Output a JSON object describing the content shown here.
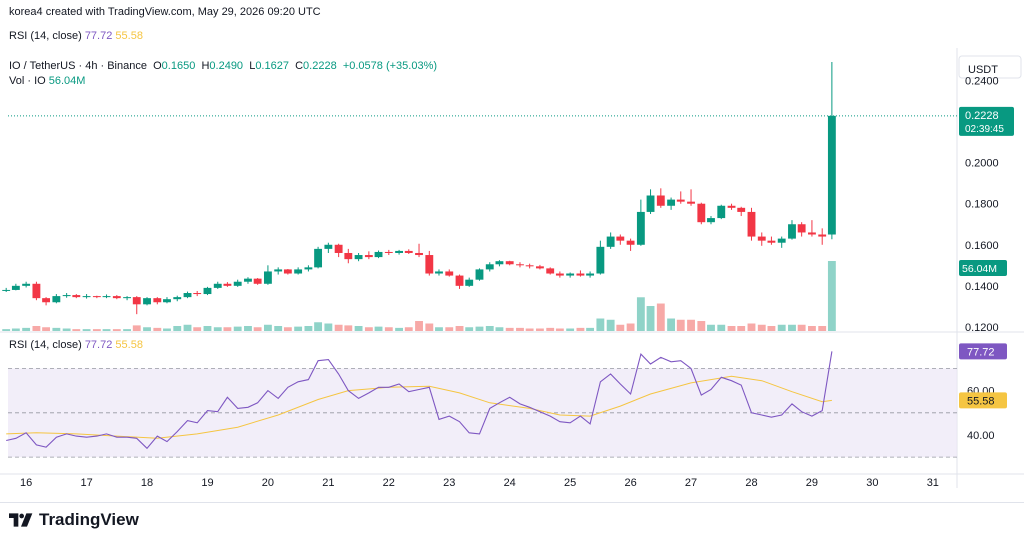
{
  "header": {
    "created_text": "korea4 created with TradingView.com, May 29, 2026 09:20 UTC"
  },
  "rsi_top": {
    "label": "RSI (14, close)",
    "rsi_value": "77.72",
    "ma_value": "55.58"
  },
  "legend": {
    "symbol": "IO / TetherUS · 4h · Binance",
    "o_label": "O",
    "o_value": "0.1650",
    "h_label": "H",
    "h_value": "0.2490",
    "l_label": "L",
    "l_value": "0.1627",
    "c_label": "C",
    "c_value": "0.2228",
    "change": "+0.0578 (+35.03%)",
    "vol_label": "Vol · IO",
    "vol_value": "56.04M"
  },
  "rsi_pane": {
    "label": "RSI (14, close)",
    "rsi_value": "77.72",
    "ma_value": "55.58"
  },
  "price_axis": {
    "currency": "USDT",
    "ticks": [
      "0.2400",
      "0.2000",
      "0.1800",
      "0.1600",
      "0.1400",
      "0.1200"
    ],
    "last_price": "0.2228",
    "countdown": "02:39:45",
    "volume_badge": "56.04M"
  },
  "rsi_axis": {
    "ticks": [
      "60.00",
      "40.00"
    ],
    "rsi_badge": "77.72",
    "ma_badge": "55.58"
  },
  "time_axis": {
    "ticks": [
      "16",
      "17",
      "18",
      "19",
      "20",
      "21",
      "22",
      "23",
      "24",
      "25",
      "26",
      "27",
      "28",
      "29",
      "30",
      "31"
    ]
  },
  "logo": {
    "text": "TradingView"
  },
  "colors": {
    "up": "#089981",
    "down": "#f23645",
    "rsi": "#7e57c2",
    "rsi_ma": "#f5c542",
    "vol_up": "#8fd3c8",
    "vol_down": "#f7a9a7",
    "rsi_band": "#ede7f6"
  },
  "chart_data": {
    "type": "candlestick",
    "symbol": "IO / TetherUS",
    "timeframe": "4h",
    "exchange": "Binance",
    "ylim": [
      0.118,
      0.25
    ],
    "rsi_ylim": [
      26,
      86
    ],
    "rsi_levels": [
      70,
      50,
      30
    ],
    "x_range_days": [
      15.7,
      31.4
    ],
    "candles": [
      {
        "t": 15.67,
        "o": 0.138,
        "h": 0.139,
        "l": 0.137,
        "c": 0.138,
        "v": 1.5
      },
      {
        "t": 15.83,
        "o": 0.138,
        "h": 0.141,
        "l": 0.1378,
        "c": 0.14,
        "v": 2.0
      },
      {
        "t": 16.0,
        "o": 0.14,
        "h": 0.142,
        "l": 0.1392,
        "c": 0.141,
        "v": 2.5
      },
      {
        "t": 16.17,
        "o": 0.141,
        "h": 0.142,
        "l": 0.133,
        "c": 0.134,
        "v": 4.0
      },
      {
        "t": 16.33,
        "o": 0.134,
        "h": 0.1345,
        "l": 0.1305,
        "c": 0.132,
        "v": 3.0
      },
      {
        "t": 16.5,
        "o": 0.132,
        "h": 0.136,
        "l": 0.1315,
        "c": 0.135,
        "v": 2.5
      },
      {
        "t": 16.67,
        "o": 0.135,
        "h": 0.1365,
        "l": 0.1342,
        "c": 0.1355,
        "v": 2.0
      },
      {
        "t": 16.83,
        "o": 0.1355,
        "h": 0.136,
        "l": 0.134,
        "c": 0.1345,
        "v": 1.5
      },
      {
        "t": 17.0,
        "o": 0.1345,
        "h": 0.136,
        "l": 0.1338,
        "c": 0.135,
        "v": 1.5
      },
      {
        "t": 17.17,
        "o": 0.135,
        "h": 0.1352,
        "l": 0.134,
        "c": 0.1345,
        "v": 1.5
      },
      {
        "t": 17.33,
        "o": 0.1345,
        "h": 0.1358,
        "l": 0.134,
        "c": 0.135,
        "v": 1.5
      },
      {
        "t": 17.5,
        "o": 0.135,
        "h": 0.1355,
        "l": 0.1335,
        "c": 0.134,
        "v": 1.5
      },
      {
        "t": 17.67,
        "o": 0.134,
        "h": 0.135,
        "l": 0.133,
        "c": 0.1345,
        "v": 1.5
      },
      {
        "t": 17.83,
        "o": 0.1345,
        "h": 0.135,
        "l": 0.1262,
        "c": 0.131,
        "v": 4.5
      },
      {
        "t": 18.0,
        "o": 0.131,
        "h": 0.1345,
        "l": 0.1305,
        "c": 0.134,
        "v": 3.0
      },
      {
        "t": 18.17,
        "o": 0.134,
        "h": 0.1345,
        "l": 0.131,
        "c": 0.132,
        "v": 2.5
      },
      {
        "t": 18.33,
        "o": 0.132,
        "h": 0.1345,
        "l": 0.1315,
        "c": 0.1335,
        "v": 2.0
      },
      {
        "t": 18.5,
        "o": 0.1335,
        "h": 0.1352,
        "l": 0.1325,
        "c": 0.1345,
        "v": 4.0
      },
      {
        "t": 18.67,
        "o": 0.1345,
        "h": 0.1372,
        "l": 0.134,
        "c": 0.1365,
        "v": 5.0
      },
      {
        "t": 18.83,
        "o": 0.1365,
        "h": 0.1375,
        "l": 0.135,
        "c": 0.136,
        "v": 3.0
      },
      {
        "t": 19.0,
        "o": 0.136,
        "h": 0.1395,
        "l": 0.1355,
        "c": 0.139,
        "v": 4.0
      },
      {
        "t": 19.17,
        "o": 0.139,
        "h": 0.142,
        "l": 0.1385,
        "c": 0.141,
        "v": 3.0
      },
      {
        "t": 19.33,
        "o": 0.141,
        "h": 0.1418,
        "l": 0.1395,
        "c": 0.14,
        "v": 3.0
      },
      {
        "t": 19.5,
        "o": 0.14,
        "h": 0.143,
        "l": 0.1395,
        "c": 0.142,
        "v": 3.5
      },
      {
        "t": 19.67,
        "o": 0.142,
        "h": 0.1442,
        "l": 0.141,
        "c": 0.1435,
        "v": 4.0
      },
      {
        "t": 19.83,
        "o": 0.1435,
        "h": 0.1438,
        "l": 0.1405,
        "c": 0.141,
        "v": 3.0
      },
      {
        "t": 20.0,
        "o": 0.141,
        "h": 0.15,
        "l": 0.1405,
        "c": 0.147,
        "v": 5.0
      },
      {
        "t": 20.17,
        "o": 0.147,
        "h": 0.149,
        "l": 0.1455,
        "c": 0.148,
        "v": 4.0
      },
      {
        "t": 20.33,
        "o": 0.148,
        "h": 0.1482,
        "l": 0.1455,
        "c": 0.146,
        "v": 3.0
      },
      {
        "t": 20.5,
        "o": 0.146,
        "h": 0.149,
        "l": 0.1455,
        "c": 0.148,
        "v": 3.5
      },
      {
        "t": 20.67,
        "o": 0.148,
        "h": 0.15,
        "l": 0.147,
        "c": 0.149,
        "v": 4.0
      },
      {
        "t": 20.83,
        "o": 0.149,
        "h": 0.159,
        "l": 0.1485,
        "c": 0.158,
        "v": 7.0
      },
      {
        "t": 21.0,
        "o": 0.158,
        "h": 0.161,
        "l": 0.156,
        "c": 0.16,
        "v": 6.0
      },
      {
        "t": 21.17,
        "o": 0.16,
        "h": 0.1605,
        "l": 0.154,
        "c": 0.156,
        "v": 5.0
      },
      {
        "t": 21.33,
        "o": 0.156,
        "h": 0.158,
        "l": 0.151,
        "c": 0.153,
        "v": 4.5
      },
      {
        "t": 21.5,
        "o": 0.153,
        "h": 0.156,
        "l": 0.152,
        "c": 0.155,
        "v": 4.0
      },
      {
        "t": 21.67,
        "o": 0.155,
        "h": 0.1568,
        "l": 0.153,
        "c": 0.154,
        "v": 3.0
      },
      {
        "t": 21.83,
        "o": 0.154,
        "h": 0.1572,
        "l": 0.1535,
        "c": 0.1565,
        "v": 3.5
      },
      {
        "t": 22.0,
        "o": 0.1565,
        "h": 0.1575,
        "l": 0.155,
        "c": 0.156,
        "v": 3.0
      },
      {
        "t": 22.17,
        "o": 0.156,
        "h": 0.1575,
        "l": 0.1552,
        "c": 0.157,
        "v": 2.5
      },
      {
        "t": 22.33,
        "o": 0.157,
        "h": 0.1578,
        "l": 0.1555,
        "c": 0.156,
        "v": 3.0
      },
      {
        "t": 22.5,
        "o": 0.156,
        "h": 0.1605,
        "l": 0.154,
        "c": 0.155,
        "v": 8.0
      },
      {
        "t": 22.67,
        "o": 0.155,
        "h": 0.157,
        "l": 0.145,
        "c": 0.146,
        "v": 6.0
      },
      {
        "t": 22.83,
        "o": 0.146,
        "h": 0.148,
        "l": 0.145,
        "c": 0.147,
        "v": 3.0
      },
      {
        "t": 23.0,
        "o": 0.147,
        "h": 0.148,
        "l": 0.1445,
        "c": 0.145,
        "v": 3.0
      },
      {
        "t": 23.17,
        "o": 0.145,
        "h": 0.1455,
        "l": 0.1385,
        "c": 0.14,
        "v": 4.0
      },
      {
        "t": 23.33,
        "o": 0.14,
        "h": 0.144,
        "l": 0.1395,
        "c": 0.143,
        "v": 3.0
      },
      {
        "t": 23.5,
        "o": 0.143,
        "h": 0.1485,
        "l": 0.1425,
        "c": 0.148,
        "v": 3.5
      },
      {
        "t": 23.67,
        "o": 0.148,
        "h": 0.1515,
        "l": 0.147,
        "c": 0.1505,
        "v": 4.0
      },
      {
        "t": 23.83,
        "o": 0.1505,
        "h": 0.1525,
        "l": 0.1495,
        "c": 0.152,
        "v": 3.0
      },
      {
        "t": 24.0,
        "o": 0.152,
        "h": 0.1522,
        "l": 0.15,
        "c": 0.1505,
        "v": 2.5
      },
      {
        "t": 24.17,
        "o": 0.1505,
        "h": 0.1515,
        "l": 0.149,
        "c": 0.15,
        "v": 2.5
      },
      {
        "t": 24.33,
        "o": 0.15,
        "h": 0.1508,
        "l": 0.1485,
        "c": 0.1495,
        "v": 2.0
      },
      {
        "t": 24.5,
        "o": 0.1495,
        "h": 0.1502,
        "l": 0.148,
        "c": 0.1485,
        "v": 2.0
      },
      {
        "t": 24.67,
        "o": 0.1485,
        "h": 0.149,
        "l": 0.1455,
        "c": 0.146,
        "v": 2.5
      },
      {
        "t": 24.83,
        "o": 0.146,
        "h": 0.147,
        "l": 0.144,
        "c": 0.145,
        "v": 2.0
      },
      {
        "t": 25.0,
        "o": 0.145,
        "h": 0.1465,
        "l": 0.144,
        "c": 0.146,
        "v": 2.0
      },
      {
        "t": 25.17,
        "o": 0.146,
        "h": 0.1475,
        "l": 0.1445,
        "c": 0.145,
        "v": 2.5
      },
      {
        "t": 25.33,
        "o": 0.145,
        "h": 0.147,
        "l": 0.144,
        "c": 0.146,
        "v": 2.5
      },
      {
        "t": 25.5,
        "o": 0.146,
        "h": 0.162,
        "l": 0.1455,
        "c": 0.159,
        "v": 10.0
      },
      {
        "t": 25.67,
        "o": 0.159,
        "h": 0.166,
        "l": 0.158,
        "c": 0.164,
        "v": 9.0
      },
      {
        "t": 25.83,
        "o": 0.164,
        "h": 0.165,
        "l": 0.16,
        "c": 0.162,
        "v": 5.0
      },
      {
        "t": 26.0,
        "o": 0.162,
        "h": 0.163,
        "l": 0.157,
        "c": 0.16,
        "v": 6.0
      },
      {
        "t": 26.17,
        "o": 0.16,
        "h": 0.182,
        "l": 0.1595,
        "c": 0.176,
        "v": 27.0
      },
      {
        "t": 26.33,
        "o": 0.176,
        "h": 0.187,
        "l": 0.175,
        "c": 0.184,
        "v": 20.0
      },
      {
        "t": 26.5,
        "o": 0.184,
        "h": 0.1875,
        "l": 0.178,
        "c": 0.179,
        "v": 22.0
      },
      {
        "t": 26.67,
        "o": 0.179,
        "h": 0.183,
        "l": 0.177,
        "c": 0.182,
        "v": 10.0
      },
      {
        "t": 26.83,
        "o": 0.182,
        "h": 0.186,
        "l": 0.18,
        "c": 0.181,
        "v": 9.0
      },
      {
        "t": 27.0,
        "o": 0.181,
        "h": 0.187,
        "l": 0.179,
        "c": 0.18,
        "v": 9.0
      },
      {
        "t": 27.17,
        "o": 0.18,
        "h": 0.1805,
        "l": 0.17,
        "c": 0.171,
        "v": 8.0
      },
      {
        "t": 27.33,
        "o": 0.171,
        "h": 0.174,
        "l": 0.17,
        "c": 0.173,
        "v": 5.0
      },
      {
        "t": 27.5,
        "o": 0.173,
        "h": 0.1795,
        "l": 0.1725,
        "c": 0.179,
        "v": 5.0
      },
      {
        "t": 27.67,
        "o": 0.179,
        "h": 0.18,
        "l": 0.177,
        "c": 0.178,
        "v": 4.0
      },
      {
        "t": 27.83,
        "o": 0.178,
        "h": 0.1785,
        "l": 0.174,
        "c": 0.176,
        "v": 4.0
      },
      {
        "t": 28.0,
        "o": 0.176,
        "h": 0.178,
        "l": 0.162,
        "c": 0.164,
        "v": 6.0
      },
      {
        "t": 28.17,
        "o": 0.164,
        "h": 0.166,
        "l": 0.1595,
        "c": 0.162,
        "v": 5.0
      },
      {
        "t": 28.33,
        "o": 0.162,
        "h": 0.164,
        "l": 0.16,
        "c": 0.161,
        "v": 4.0
      },
      {
        "t": 28.5,
        "o": 0.161,
        "h": 0.164,
        "l": 0.1585,
        "c": 0.163,
        "v": 5.0
      },
      {
        "t": 28.67,
        "o": 0.163,
        "h": 0.172,
        "l": 0.1625,
        "c": 0.17,
        "v": 5.0
      },
      {
        "t": 28.83,
        "o": 0.17,
        "h": 0.171,
        "l": 0.164,
        "c": 0.166,
        "v": 5.0
      },
      {
        "t": 29.0,
        "o": 0.166,
        "h": 0.172,
        "l": 0.164,
        "c": 0.165,
        "v": 4.0
      },
      {
        "t": 29.17,
        "o": 0.165,
        "h": 0.168,
        "l": 0.16,
        "c": 0.164,
        "v": 4.0
      },
      {
        "t": 29.33,
        "o": 0.165,
        "h": 0.249,
        "l": 0.1627,
        "c": 0.2228,
        "v": 56.04
      }
    ],
    "rsi": [
      {
        "t": 15.67,
        "v": 37.5
      },
      {
        "t": 15.83,
        "v": 38.5
      },
      {
        "t": 16.0,
        "v": 41.0
      },
      {
        "t": 16.17,
        "v": 35.5
      },
      {
        "t": 16.33,
        "v": 34.5
      },
      {
        "t": 16.5,
        "v": 39.0
      },
      {
        "t": 16.67,
        "v": 40.5
      },
      {
        "t": 16.83,
        "v": 39.5
      },
      {
        "t": 17.0,
        "v": 39.0
      },
      {
        "t": 17.17,
        "v": 39.5
      },
      {
        "t": 17.33,
        "v": 40.5
      },
      {
        "t": 17.5,
        "v": 39.0
      },
      {
        "t": 17.67,
        "v": 39.0
      },
      {
        "t": 17.83,
        "v": 38.5
      },
      {
        "t": 18.0,
        "v": 34.0
      },
      {
        "t": 18.17,
        "v": 39.5
      },
      {
        "t": 18.33,
        "v": 37.0
      },
      {
        "t": 18.5,
        "v": 41.5
      },
      {
        "t": 18.67,
        "v": 46.5
      },
      {
        "t": 18.83,
        "v": 45.5
      },
      {
        "t": 19.0,
        "v": 51.0
      },
      {
        "t": 19.17,
        "v": 50.5
      },
      {
        "t": 19.33,
        "v": 57.0
      },
      {
        "t": 19.5,
        "v": 52.0
      },
      {
        "t": 19.67,
        "v": 52.5
      },
      {
        "t": 19.83,
        "v": 54.5
      },
      {
        "t": 20.0,
        "v": 60.0
      },
      {
        "t": 20.17,
        "v": 56.5
      },
      {
        "t": 20.33,
        "v": 61.5
      },
      {
        "t": 20.5,
        "v": 64.0
      },
      {
        "t": 20.67,
        "v": 65.0
      },
      {
        "t": 20.83,
        "v": 73.5
      },
      {
        "t": 21.0,
        "v": 74.0
      },
      {
        "t": 21.17,
        "v": 67.5
      },
      {
        "t": 21.33,
        "v": 60.0
      },
      {
        "t": 21.5,
        "v": 56.5
      },
      {
        "t": 21.67,
        "v": 59.0
      },
      {
        "t": 21.83,
        "v": 61.5
      },
      {
        "t": 22.0,
        "v": 61.5
      },
      {
        "t": 22.17,
        "v": 63.0
      },
      {
        "t": 22.33,
        "v": 59.5
      },
      {
        "t": 22.5,
        "v": 60.5
      },
      {
        "t": 22.67,
        "v": 61.5
      },
      {
        "t": 22.83,
        "v": 47.0
      },
      {
        "t": 23.0,
        "v": 48.5
      },
      {
        "t": 23.17,
        "v": 46.0
      },
      {
        "t": 23.33,
        "v": 41.0
      },
      {
        "t": 23.5,
        "v": 40.5
      },
      {
        "t": 23.67,
        "v": 52.0
      },
      {
        "t": 23.83,
        "v": 54.5
      },
      {
        "t": 24.0,
        "v": 57.0
      },
      {
        "t": 24.17,
        "v": 54.0
      },
      {
        "t": 24.33,
        "v": 52.5
      },
      {
        "t": 24.5,
        "v": 50.5
      },
      {
        "t": 24.67,
        "v": 48.5
      },
      {
        "t": 24.83,
        "v": 46.0
      },
      {
        "t": 25.0,
        "v": 45.5
      },
      {
        "t": 25.17,
        "v": 48.5
      },
      {
        "t": 25.33,
        "v": 45.0
      },
      {
        "t": 25.5,
        "v": 64.0
      },
      {
        "t": 25.67,
        "v": 67.5
      },
      {
        "t": 25.83,
        "v": 63.0
      },
      {
        "t": 26.0,
        "v": 58.5
      },
      {
        "t": 26.17,
        "v": 76.5
      },
      {
        "t": 26.33,
        "v": 72.0
      },
      {
        "t": 26.5,
        "v": 75.0
      },
      {
        "t": 26.67,
        "v": 73.0
      },
      {
        "t": 26.83,
        "v": 73.5
      },
      {
        "t": 27.0,
        "v": 70.0
      },
      {
        "t": 27.17,
        "v": 58.0
      },
      {
        "t": 27.33,
        "v": 60.5
      },
      {
        "t": 27.5,
        "v": 66.0
      },
      {
        "t": 27.67,
        "v": 64.5
      },
      {
        "t": 27.83,
        "v": 62.5
      },
      {
        "t": 28.0,
        "v": 50.0
      },
      {
        "t": 28.17,
        "v": 49.0
      },
      {
        "t": 28.33,
        "v": 48.0
      },
      {
        "t": 28.5,
        "v": 49.0
      },
      {
        "t": 28.67,
        "v": 54.0
      },
      {
        "t": 28.83,
        "v": 50.5
      },
      {
        "t": 29.0,
        "v": 48.5
      },
      {
        "t": 29.17,
        "v": 51.0
      },
      {
        "t": 29.33,
        "v": 77.72
      }
    ],
    "rsi_ma": [
      {
        "t": 15.67,
        "v": 40.5
      },
      {
        "t": 16.17,
        "v": 41.0
      },
      {
        "t": 16.83,
        "v": 40.5
      },
      {
        "t": 17.5,
        "v": 39.5
      },
      {
        "t": 18.17,
        "v": 38.5
      },
      {
        "t": 18.83,
        "v": 40.5
      },
      {
        "t": 19.5,
        "v": 43.5
      },
      {
        "t": 20.17,
        "v": 49.0
      },
      {
        "t": 20.83,
        "v": 56.0
      },
      {
        "t": 21.33,
        "v": 60.0
      },
      {
        "t": 22.0,
        "v": 61.5
      },
      {
        "t": 22.67,
        "v": 62.0
      },
      {
        "t": 23.17,
        "v": 59.0
      },
      {
        "t": 23.67,
        "v": 54.5
      },
      {
        "t": 24.33,
        "v": 52.0
      },
      {
        "t": 24.83,
        "v": 49.0
      },
      {
        "t": 25.33,
        "v": 48.5
      },
      {
        "t": 25.83,
        "v": 53.0
      },
      {
        "t": 26.33,
        "v": 58.5
      },
      {
        "t": 27.0,
        "v": 63.5
      },
      {
        "t": 27.67,
        "v": 66.5
      },
      {
        "t": 28.17,
        "v": 64.5
      },
      {
        "t": 28.67,
        "v": 59.5
      },
      {
        "t": 29.17,
        "v": 55.0
      },
      {
        "t": 29.33,
        "v": 55.58
      }
    ]
  }
}
